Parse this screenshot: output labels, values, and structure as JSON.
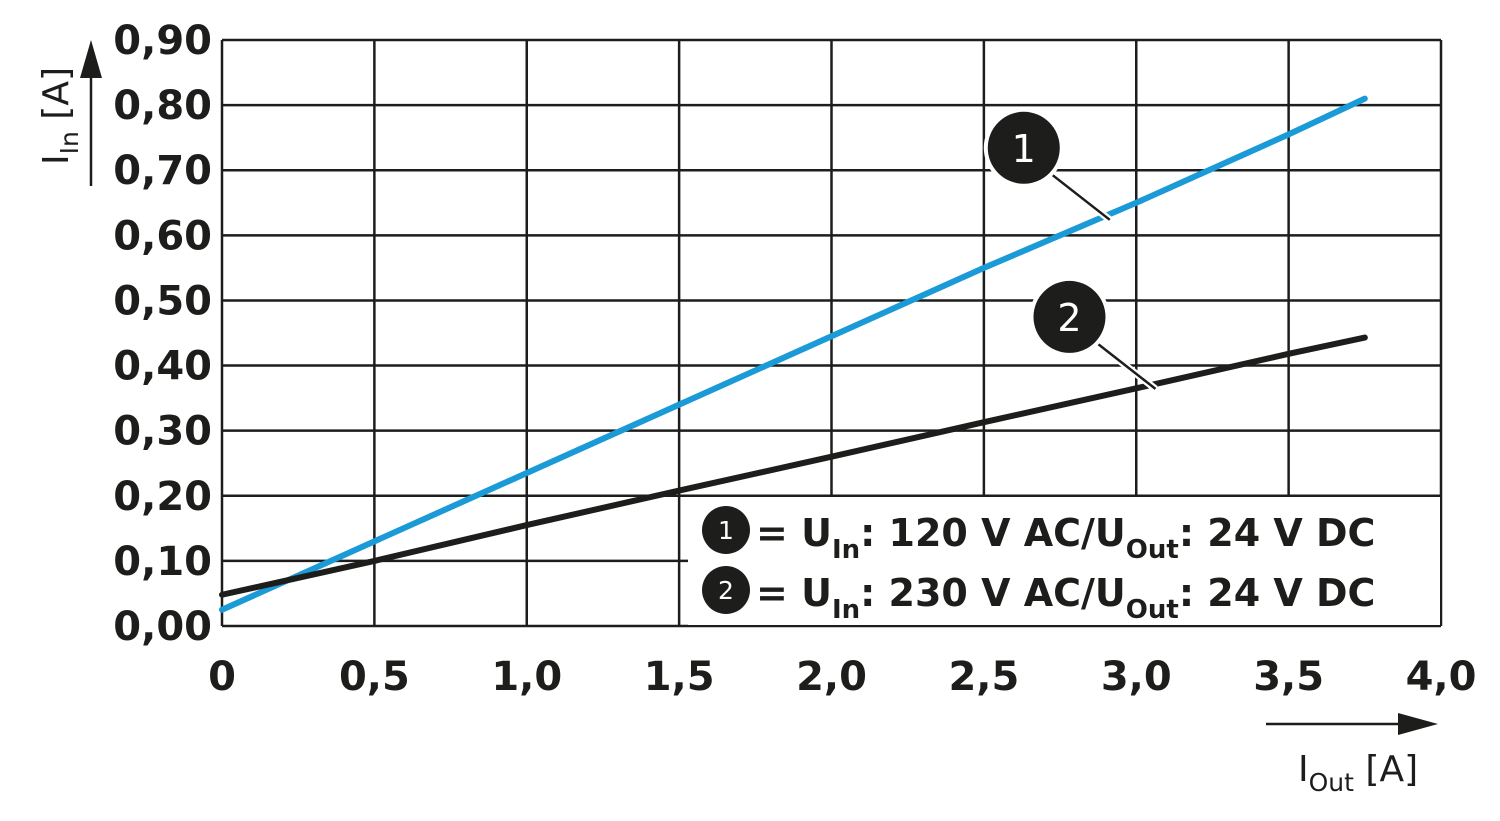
{
  "chart_data": {
    "type": "line",
    "x_ticks": [
      "0",
      "0,5",
      "1,0",
      "1,5",
      "2,0",
      "2,5",
      "3,0",
      "3,5",
      "4,0"
    ],
    "y_ticks": [
      "0,00",
      "0,10",
      "0,20",
      "0,30",
      "0,40",
      "0,50",
      "0,60",
      "0,70",
      "0,80",
      "0,90"
    ],
    "xlim": [
      0,
      4.0
    ],
    "ylim": [
      0,
      0.9
    ],
    "grid": true,
    "xlabel": {
      "main": "I",
      "sub": "Out",
      "unit": " [A]"
    },
    "ylabel": {
      "main": "I",
      "sub": "In",
      "unit": " [A]"
    },
    "series": [
      {
        "marker": "1",
        "color": "#1a9ad6",
        "x": [
          0,
          0.5,
          1.0,
          1.5,
          2.0,
          2.5,
          3.0,
          3.5,
          3.75
        ],
        "y": [
          0.025,
          0.13,
          0.235,
          0.34,
          0.445,
          0.55,
          0.65,
          0.755,
          0.81
        ]
      },
      {
        "marker": "2",
        "color": "#1d1d1b",
        "x": [
          0,
          0.5,
          1.0,
          1.5,
          2.0,
          2.5,
          3.0,
          3.5,
          3.75
        ],
        "y": [
          0.048,
          0.1,
          0.155,
          0.208,
          0.26,
          0.313,
          0.365,
          0.418,
          0.443
        ]
      }
    ],
    "callouts": [
      {
        "label": "1",
        "series": 0,
        "at_x": 2.9
      },
      {
        "label": "2",
        "series": 1,
        "at_x": 3.05
      }
    ],
    "legend": {
      "position": "bottom-right",
      "entries": [
        {
          "num": "1",
          "eq": " = U",
          "sub1": "In",
          "mid": ": 120 V AC/U",
          "sub2": "Out",
          "end": ": 24 V DC"
        },
        {
          "num": "2",
          "eq": " = U",
          "sub1": "In",
          "mid": ": 230 V AC/U",
          "sub2": "Out",
          "end": ": 24 V DC"
        }
      ]
    }
  }
}
